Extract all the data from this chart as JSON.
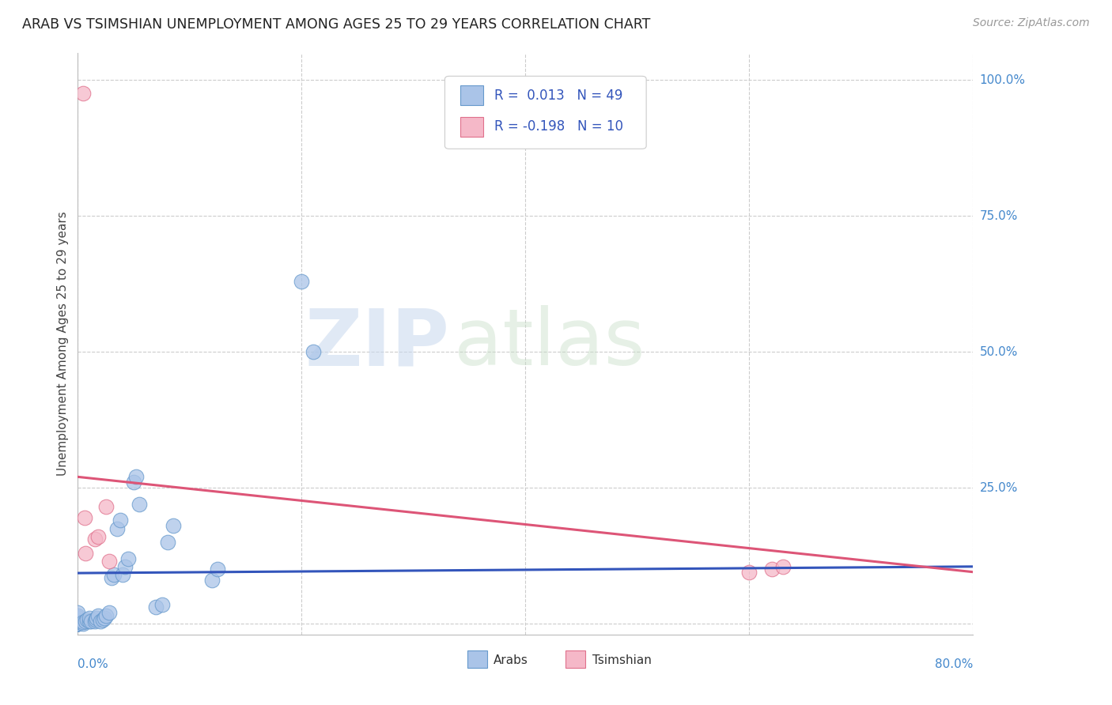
{
  "title": "ARAB VS TSIMSHIAN UNEMPLOYMENT AMONG AGES 25 TO 29 YEARS CORRELATION CHART",
  "source": "Source: ZipAtlas.com",
  "ylabel": "Unemployment Among Ages 25 to 29 years",
  "watermark_zip": "ZIP",
  "watermark_atlas": "atlas",
  "xlim": [
    0.0,
    0.8
  ],
  "ylim": [
    -0.02,
    1.05
  ],
  "yticks": [
    0.0,
    0.25,
    0.5,
    0.75,
    1.0
  ],
  "ytick_labels": [
    "",
    "25.0%",
    "50.0%",
    "75.0%",
    "100.0%"
  ],
  "xticks": [
    0.0,
    0.2,
    0.4,
    0.6,
    0.8
  ],
  "xtick_labels": [
    "0.0%",
    "",
    "",
    "",
    "80.0%"
  ],
  "arab_color": "#aac4e8",
  "tsimshian_color": "#f5b8c8",
  "arab_edge_color": "#6699cc",
  "tsimshian_edge_color": "#e0708c",
  "arab_line_color": "#3355bb",
  "tsimshian_line_color": "#dd5577",
  "right_label_color": "#4488cc",
  "legend_text_color": "#3355bb",
  "grid_color": "#cccccc",
  "arab_R": 0.013,
  "arab_N": 49,
  "tsimshian_R": -0.198,
  "tsimshian_N": 10,
  "arab_line_x": [
    0.0,
    0.8
  ],
  "arab_line_y": [
    0.093,
    0.105
  ],
  "tsimshian_line_x": [
    0.0,
    0.8
  ],
  "tsimshian_line_y": [
    0.27,
    0.095
  ],
  "arab_x": [
    0.0,
    0.0,
    0.0,
    0.0,
    0.0,
    0.0,
    0.0,
    0.0,
    0.0,
    0.0,
    0.0,
    0.0,
    0.0,
    0.0,
    0.0,
    0.005,
    0.005,
    0.007,
    0.008,
    0.01,
    0.01,
    0.012,
    0.015,
    0.016,
    0.017,
    0.018,
    0.02,
    0.022,
    0.024,
    0.025,
    0.028,
    0.03,
    0.032,
    0.035,
    0.038,
    0.04,
    0.042,
    0.045,
    0.05,
    0.052,
    0.055,
    0.07,
    0.075,
    0.08,
    0.085,
    0.12,
    0.125,
    0.2,
    0.21
  ],
  "arab_y": [
    0.0,
    0.0,
    0.0,
    0.0,
    0.0,
    0.0,
    0.0,
    0.0,
    0.005,
    0.005,
    0.008,
    0.01,
    0.012,
    0.015,
    0.02,
    0.0,
    0.003,
    0.005,
    0.008,
    0.005,
    0.01,
    0.005,
    0.005,
    0.008,
    0.01,
    0.015,
    0.005,
    0.008,
    0.01,
    0.015,
    0.02,
    0.085,
    0.09,
    0.175,
    0.19,
    0.09,
    0.105,
    0.12,
    0.26,
    0.27,
    0.22,
    0.03,
    0.035,
    0.15,
    0.18,
    0.08,
    0.1,
    0.63,
    0.5
  ],
  "tsimshian_x": [
    0.005,
    0.006,
    0.007,
    0.015,
    0.018,
    0.025,
    0.028,
    0.6,
    0.62,
    0.63
  ],
  "tsimshian_y": [
    0.975,
    0.195,
    0.13,
    0.155,
    0.16,
    0.215,
    0.115,
    0.095,
    0.1,
    0.105
  ]
}
